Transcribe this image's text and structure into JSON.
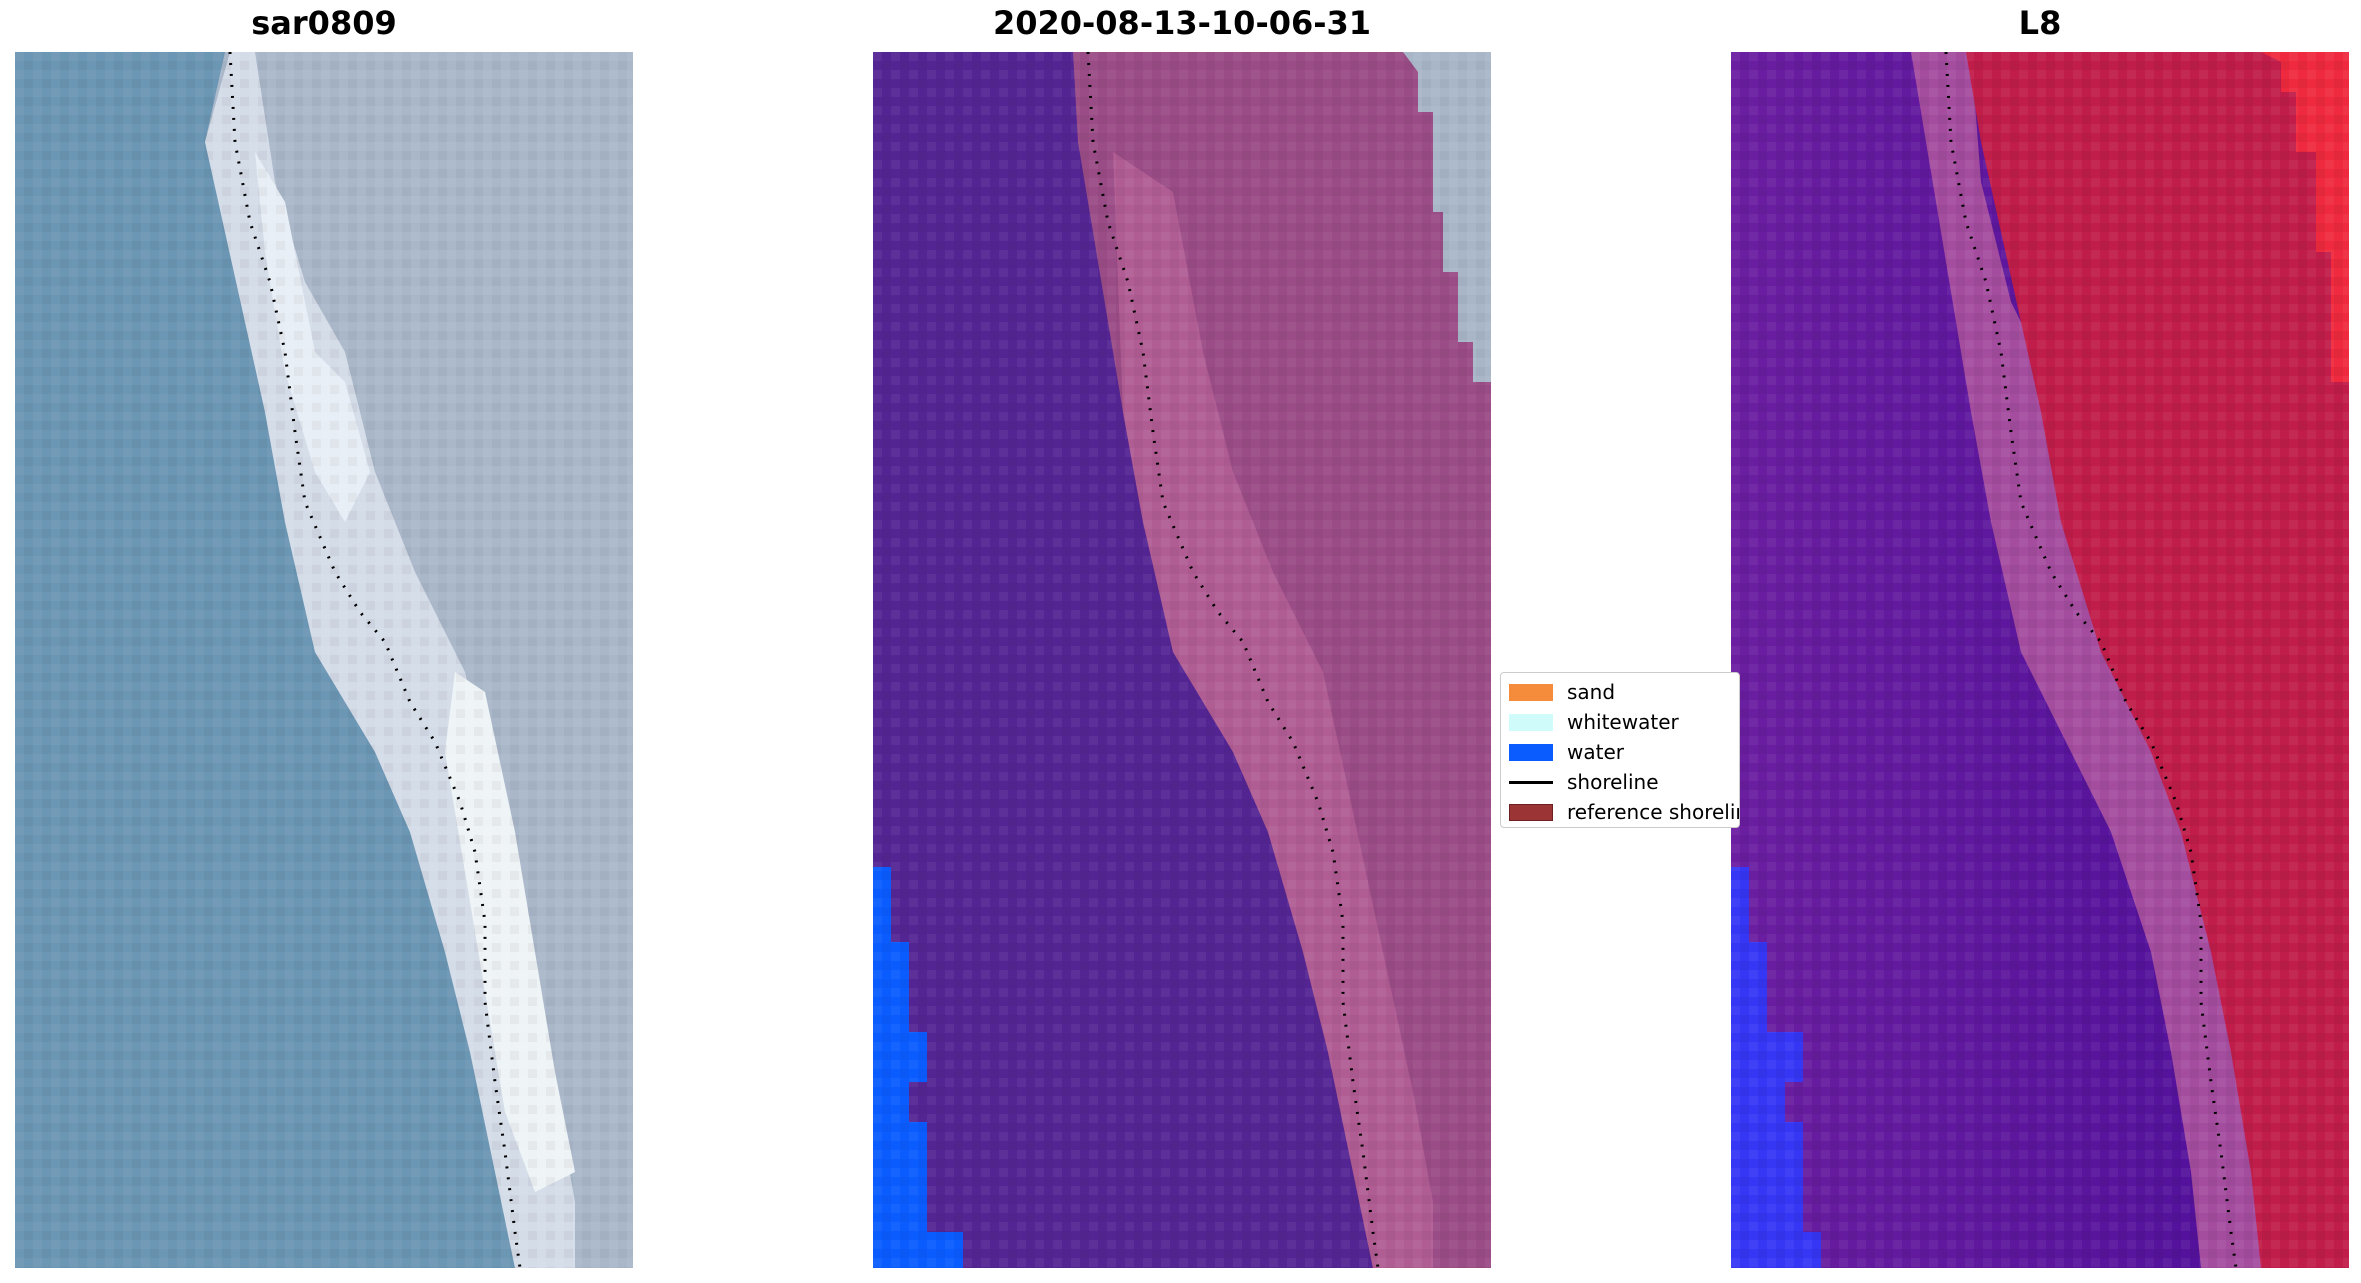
{
  "panels": [
    {
      "title": "sar0809"
    },
    {
      "title": "2020-08-13-10-06-31"
    },
    {
      "title": "L8"
    }
  ],
  "legend": {
    "items": [
      {
        "label": "sand",
        "kind": "patch",
        "color": "#f58c3c"
      },
      {
        "label": "whitewater",
        "kind": "patch",
        "color": "#cffcfa"
      },
      {
        "label": "water",
        "kind": "patch",
        "color": "#0a5cff"
      },
      {
        "label": "shoreline",
        "kind": "line",
        "color": "#000000"
      },
      {
        "label": "reference shoreline",
        "kind": "patch",
        "color": "#9b3535"
      }
    ]
  },
  "colors": {
    "ocean_rgb": "#6b96b4",
    "beach_rgb": "#c9d4e2",
    "land_rgb": "#a9b6c8",
    "ocean_classified": "#532592",
    "land_classified": "#9a4c86",
    "water_class": "#0a5cff",
    "ocean_ndwi": "#5e1895",
    "land_ndwi": "#c11d4a",
    "water_ndwi": "#3636f5"
  }
}
